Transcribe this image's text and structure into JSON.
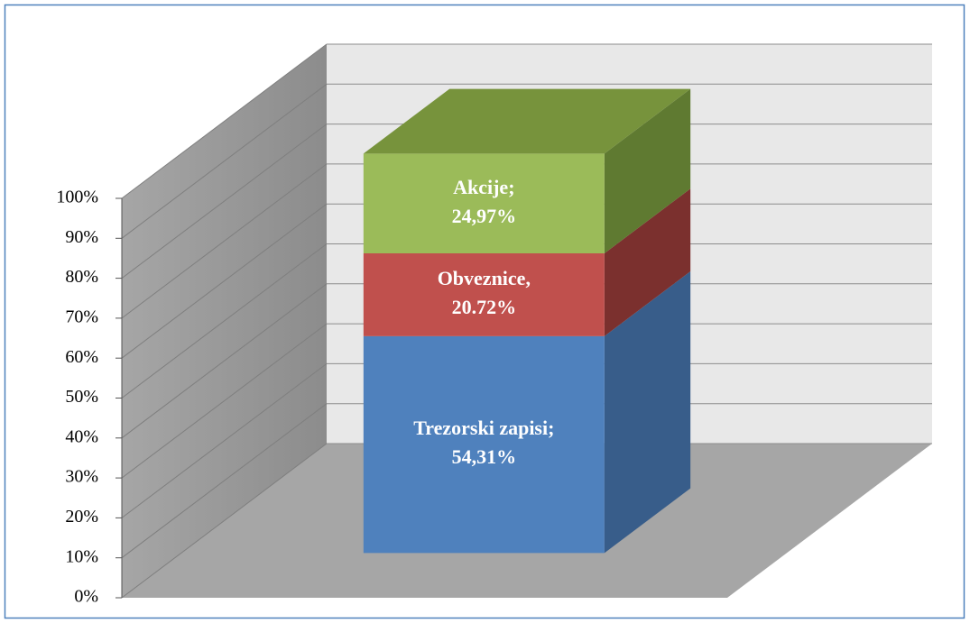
{
  "chart_data": {
    "type": "bar3d_stacked",
    "categories": [
      null
    ],
    "series": [
      {
        "name": "Trezorski zapisi;",
        "color": "#4f81bd",
        "side_color": "#385d8a",
        "top_color": "#3f6797",
        "values": [
          54.31
        ],
        "value_labels": [
          "54,31%"
        ]
      },
      {
        "name": "Obveznice,",
        "color": "#c0504d",
        "side_color": "#7b302e",
        "top_color": "#9a3d3b",
        "values": [
          20.72
        ],
        "value_labels": [
          "20.72%"
        ]
      },
      {
        "name": "Akcije;",
        "color": "#9bbb59",
        "side_color": "#5f7a31",
        "top_color": "#77933c",
        "values": [
          24.97
        ],
        "value_labels": [
          "24,97%"
        ]
      }
    ],
    "ylim": [
      0,
      100
    ],
    "yticks": [
      {
        "value": 0,
        "label": "0%"
      },
      {
        "value": 10,
        "label": "10%"
      },
      {
        "value": 20,
        "label": "20%"
      },
      {
        "value": 30,
        "label": "30%"
      },
      {
        "value": 40,
        "label": "40%"
      },
      {
        "value": 50,
        "label": "50%"
      },
      {
        "value": 60,
        "label": "60%"
      },
      {
        "value": 70,
        "label": "70%"
      },
      {
        "value": 80,
        "label": "80%"
      },
      {
        "value": 90,
        "label": "90%"
      },
      {
        "value": 100,
        "label": "100%"
      }
    ],
    "grid": true
  }
}
